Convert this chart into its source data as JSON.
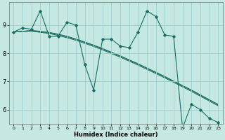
{
  "xlabel": "Humidex (Indice chaleur)",
  "bg_color": "#c5e8e3",
  "grid_color": "#9ececa",
  "line_color": "#1a6b60",
  "series_main": [
    8.75,
    8.9,
    8.85,
    9.5,
    8.6,
    8.6,
    9.1,
    9.0,
    7.6,
    6.7,
    8.5,
    8.5,
    8.25,
    8.2,
    8.75,
    9.5,
    9.3,
    8.65,
    8.6,
    5.35,
    6.2,
    6.0,
    5.7,
    5.55
  ],
  "series_linear": [
    [
      8.75,
      8.78,
      8.81,
      8.78,
      8.74,
      8.68,
      8.6,
      8.51,
      8.4,
      8.29,
      8.17,
      8.04,
      7.91,
      7.77,
      7.63,
      7.48,
      7.33,
      7.18,
      7.02,
      6.86,
      6.7,
      6.53,
      6.36,
      6.19
    ],
    [
      8.75,
      8.78,
      8.79,
      8.76,
      8.72,
      8.66,
      8.58,
      8.49,
      8.38,
      8.27,
      8.15,
      8.02,
      7.89,
      7.75,
      7.61,
      7.46,
      7.31,
      7.16,
      7.0,
      6.84,
      6.68,
      6.51,
      6.34,
      6.17
    ],
    [
      8.75,
      8.77,
      8.78,
      8.74,
      8.7,
      8.63,
      8.55,
      8.46,
      8.35,
      8.24,
      8.12,
      7.99,
      7.86,
      7.72,
      7.58,
      7.43,
      7.28,
      7.13,
      6.97,
      6.81,
      6.65,
      6.48,
      6.31,
      6.14
    ]
  ],
  "xlim": [
    -0.5,
    23.5
  ],
  "ylim": [
    5.5,
    9.8
  ],
  "yticks": [
    6,
    7,
    8,
    9
  ],
  "xticks": [
    0,
    1,
    2,
    3,
    4,
    5,
    6,
    7,
    8,
    9,
    10,
    11,
    12,
    13,
    14,
    15,
    16,
    17,
    18,
    19,
    20,
    21,
    22,
    23
  ]
}
